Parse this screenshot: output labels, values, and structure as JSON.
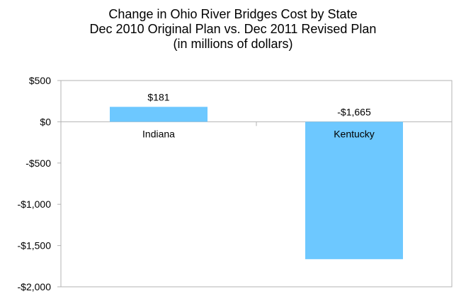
{
  "chart_data": {
    "type": "bar",
    "title_lines": [
      "Change in Ohio River Bridges Cost by State",
      "Dec 2010 Original Plan vs. Dec 2011 Revised Plan",
      "(in millions of dollars)"
    ],
    "categories": [
      "Indiana",
      "Kentucky"
    ],
    "values": [
      181,
      -1665
    ],
    "data_labels": [
      "$181",
      "-$1,665"
    ],
    "ylim": [
      -2000,
      500
    ],
    "yticks": [
      500,
      0,
      -500,
      -1000,
      -1500,
      -2000
    ],
    "ytick_labels": [
      "$500",
      "$0",
      "-$500",
      "-$1,000",
      "-$1,500",
      "-$2,000"
    ],
    "bar_color": "#6DC8FF",
    "grid": false,
    "legend": "none"
  }
}
